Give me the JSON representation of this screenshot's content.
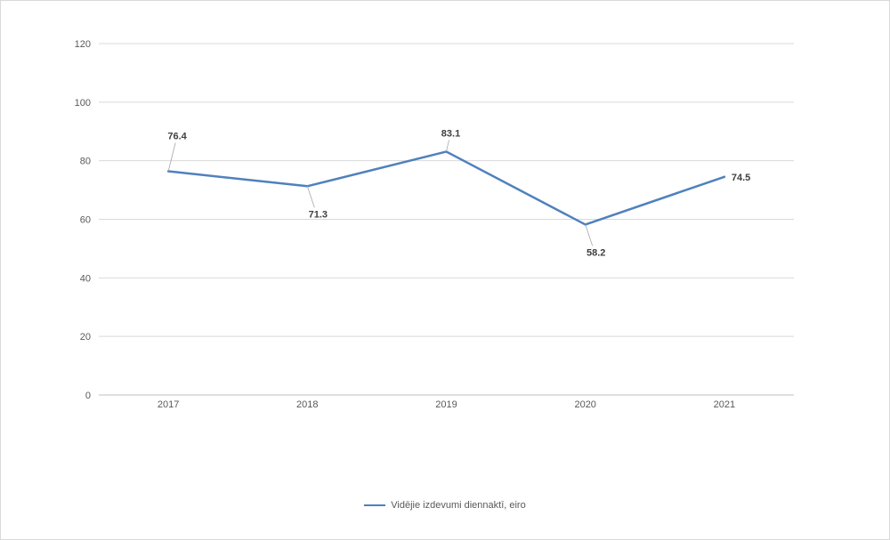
{
  "chart_data": {
    "type": "line",
    "title": "",
    "xlabel": "",
    "ylabel": "",
    "categories": [
      "2017",
      "2018",
      "2019",
      "2020",
      "2021"
    ],
    "series": [
      {
        "name": "Vidējie izdevumi diennaktī, eiro",
        "values": [
          76.4,
          71.3,
          83.1,
          58.2,
          74.5
        ],
        "color": "#4f81bd"
      }
    ],
    "ylim": [
      0,
      120
    ],
    "yticks": [
      0,
      20,
      40,
      60,
      80,
      100,
      120
    ],
    "grid": true,
    "legend_position": "bottom",
    "data_labels": true
  }
}
